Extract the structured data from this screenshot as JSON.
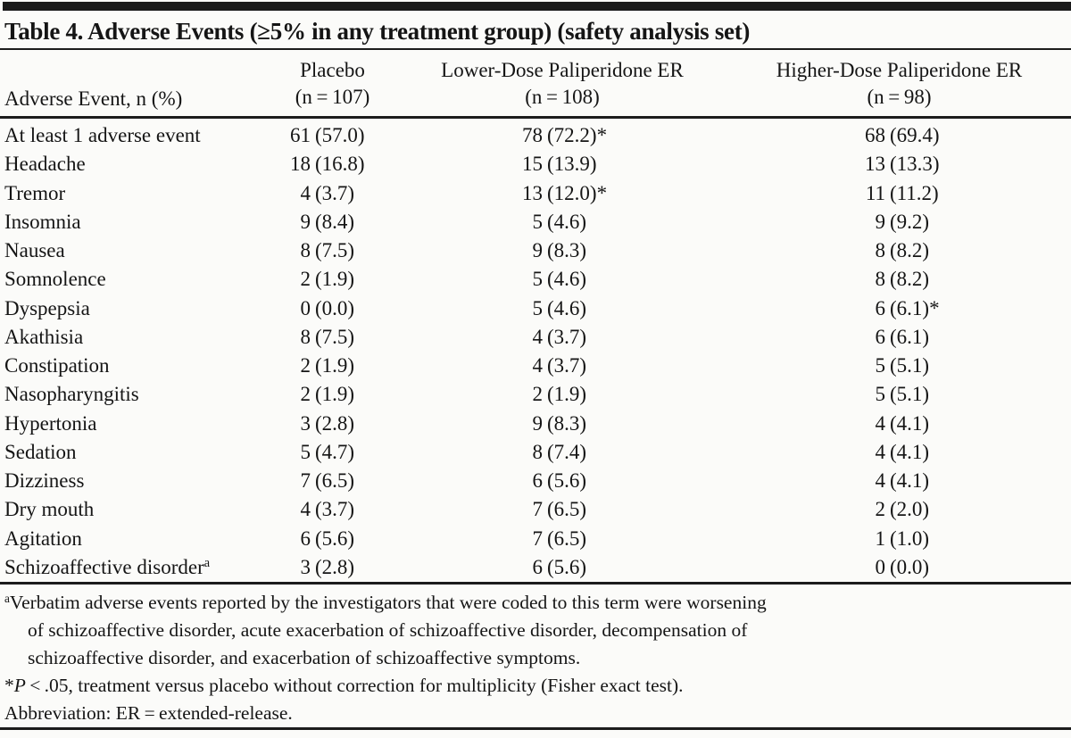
{
  "title": "Table 4. Adverse Events (≥5% in any treatment group) (safety analysis set)",
  "header": {
    "row_label": "Adverse Event, n (%)",
    "columns": [
      {
        "name": "Placebo",
        "n": "(n = 107)"
      },
      {
        "name": "Lower-Dose Paliperidone ER",
        "n": "(n = 108)"
      },
      {
        "name": "Higher-Dose Paliperidone ER",
        "n": "(n = 98)"
      }
    ]
  },
  "rows": [
    {
      "event": "At least 1 adverse event",
      "sup": "",
      "values": [
        {
          "n": "61",
          "pct": "(57.0)",
          "star": ""
        },
        {
          "n": "78",
          "pct": "(72.2)",
          "star": "*"
        },
        {
          "n": "68",
          "pct": "(69.4)",
          "star": ""
        }
      ]
    },
    {
      "event": "Headache",
      "sup": "",
      "values": [
        {
          "n": "18",
          "pct": "(16.8)",
          "star": ""
        },
        {
          "n": "15",
          "pct": "(13.9)",
          "star": ""
        },
        {
          "n": "13",
          "pct": "(13.3)",
          "star": ""
        }
      ]
    },
    {
      "event": "Tremor",
      "sup": "",
      "values": [
        {
          "n": "4",
          "pct": "(3.7)",
          "star": ""
        },
        {
          "n": "13",
          "pct": "(12.0)",
          "star": "*"
        },
        {
          "n": "11",
          "pct": "(11.2)",
          "star": ""
        }
      ]
    },
    {
      "event": "Insomnia",
      "sup": "",
      "values": [
        {
          "n": "9",
          "pct": "(8.4)",
          "star": ""
        },
        {
          "n": "5",
          "pct": "(4.6)",
          "star": ""
        },
        {
          "n": "9",
          "pct": "(9.2)",
          "star": ""
        }
      ]
    },
    {
      "event": "Nausea",
      "sup": "",
      "values": [
        {
          "n": "8",
          "pct": "(7.5)",
          "star": ""
        },
        {
          "n": "9",
          "pct": "(8.3)",
          "star": ""
        },
        {
          "n": "8",
          "pct": "(8.2)",
          "star": ""
        }
      ]
    },
    {
      "event": "Somnolence",
      "sup": "",
      "values": [
        {
          "n": "2",
          "pct": "(1.9)",
          "star": ""
        },
        {
          "n": "5",
          "pct": "(4.6)",
          "star": ""
        },
        {
          "n": "8",
          "pct": "(8.2)",
          "star": ""
        }
      ]
    },
    {
      "event": "Dyspepsia",
      "sup": "",
      "values": [
        {
          "n": "0",
          "pct": "(0.0)",
          "star": ""
        },
        {
          "n": "5",
          "pct": "(4.6)",
          "star": ""
        },
        {
          "n": "6",
          "pct": "(6.1)",
          "star": "*"
        }
      ]
    },
    {
      "event": "Akathisia",
      "sup": "",
      "values": [
        {
          "n": "8",
          "pct": "(7.5)",
          "star": ""
        },
        {
          "n": "4",
          "pct": "(3.7)",
          "star": ""
        },
        {
          "n": "6",
          "pct": "(6.1)",
          "star": ""
        }
      ]
    },
    {
      "event": "Constipation",
      "sup": "",
      "values": [
        {
          "n": "2",
          "pct": "(1.9)",
          "star": ""
        },
        {
          "n": "4",
          "pct": "(3.7)",
          "star": ""
        },
        {
          "n": "5",
          "pct": "(5.1)",
          "star": ""
        }
      ]
    },
    {
      "event": "Nasopharyngitis",
      "sup": "",
      "values": [
        {
          "n": "2",
          "pct": "(1.9)",
          "star": ""
        },
        {
          "n": "2",
          "pct": "(1.9)",
          "star": ""
        },
        {
          "n": "5",
          "pct": "(5.1)",
          "star": ""
        }
      ]
    },
    {
      "event": "Hypertonia",
      "sup": "",
      "values": [
        {
          "n": "3",
          "pct": "(2.8)",
          "star": ""
        },
        {
          "n": "9",
          "pct": "(8.3)",
          "star": ""
        },
        {
          "n": "4",
          "pct": "(4.1)",
          "star": ""
        }
      ]
    },
    {
      "event": "Sedation",
      "sup": "",
      "values": [
        {
          "n": "5",
          "pct": "(4.7)",
          "star": ""
        },
        {
          "n": "8",
          "pct": "(7.4)",
          "star": ""
        },
        {
          "n": "4",
          "pct": "(4.1)",
          "star": ""
        }
      ]
    },
    {
      "event": "Dizziness",
      "sup": "",
      "values": [
        {
          "n": "7",
          "pct": "(6.5)",
          "star": ""
        },
        {
          "n": "6",
          "pct": "(5.6)",
          "star": ""
        },
        {
          "n": "4",
          "pct": "(4.1)",
          "star": ""
        }
      ]
    },
    {
      "event": "Dry mouth",
      "sup": "",
      "values": [
        {
          "n": "4",
          "pct": "(3.7)",
          "star": ""
        },
        {
          "n": "7",
          "pct": "(6.5)",
          "star": ""
        },
        {
          "n": "2",
          "pct": "(2.0)",
          "star": ""
        }
      ]
    },
    {
      "event": "Agitation",
      "sup": "",
      "values": [
        {
          "n": "6",
          "pct": "(5.6)",
          "star": ""
        },
        {
          "n": "7",
          "pct": "(6.5)",
          "star": ""
        },
        {
          "n": "1",
          "pct": "(1.0)",
          "star": ""
        }
      ]
    },
    {
      "event": "Schizoaffective disorder",
      "sup": "a",
      "values": [
        {
          "n": "3",
          "pct": "(2.8)",
          "star": ""
        },
        {
          "n": "6",
          "pct": "(5.6)",
          "star": ""
        },
        {
          "n": "0",
          "pct": "(0.0)",
          "star": ""
        }
      ]
    }
  ],
  "footnotes": {
    "a": {
      "sup": "a",
      "lines": [
        "Verbatim adverse events reported by the investigators that were coded to this term were worsening",
        "of schizoaffective disorder, acute exacerbation of schizoaffective disorder, decompensation of",
        "schizoaffective disorder, and exacerbation of schizoaffective symptoms."
      ]
    },
    "p": {
      "star": "*",
      "var": "P",
      "rest": " < .05, treatment versus placebo without correction for multiplicity (Fisher exact test)."
    },
    "abbreviation": "Abbreviation: ER = extended-release."
  },
  "colors": {
    "ink": "#1c1c1c",
    "paper": "#fbfbf9"
  }
}
